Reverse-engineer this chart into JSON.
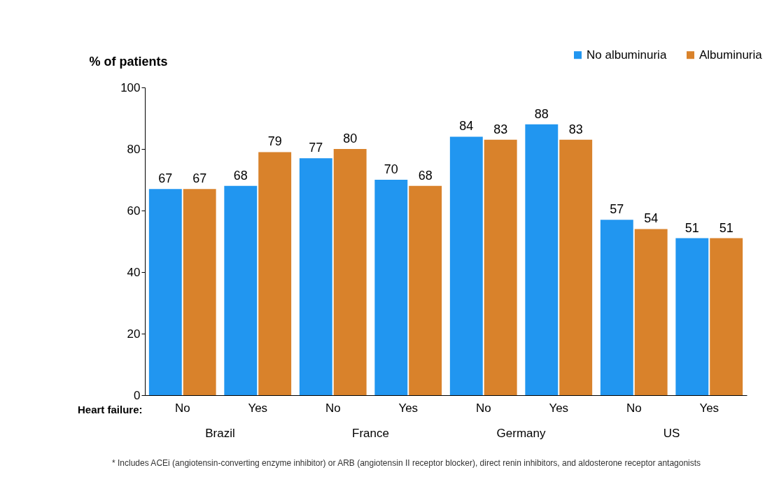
{
  "chart_data": {
    "type": "bar",
    "ylabel": "% of patients",
    "xlabel": "Heart failure:",
    "categories": [
      "No",
      "Yes",
      "No",
      "Yes",
      "No",
      "Yes",
      "No",
      "Yes"
    ],
    "series": [
      {
        "name": "No albuminuria",
        "color": "#2196f0",
        "values": [
          67,
          68,
          77,
          70,
          84,
          88,
          57,
          51
        ]
      },
      {
        "name": "Albuminuria",
        "color": "#d9822b",
        "values": [
          67,
          79,
          80,
          68,
          83,
          83,
          54,
          51
        ]
      }
    ],
    "ylim": [
      0,
      100
    ],
    "yticks": [
      0,
      20,
      40,
      60,
      80,
      100
    ],
    "grid": false,
    "legend": "top right",
    "data_labels": true,
    "annotations": [
      "Brazil",
      "France",
      "Germany",
      "US",
      "* Includes ACEi (angiotensin-converting enzyme inhibitor) or ARB (angiotensin II receptor blocker), direct renin inhibitors, and aldosterone receptor antagonists"
    ]
  }
}
